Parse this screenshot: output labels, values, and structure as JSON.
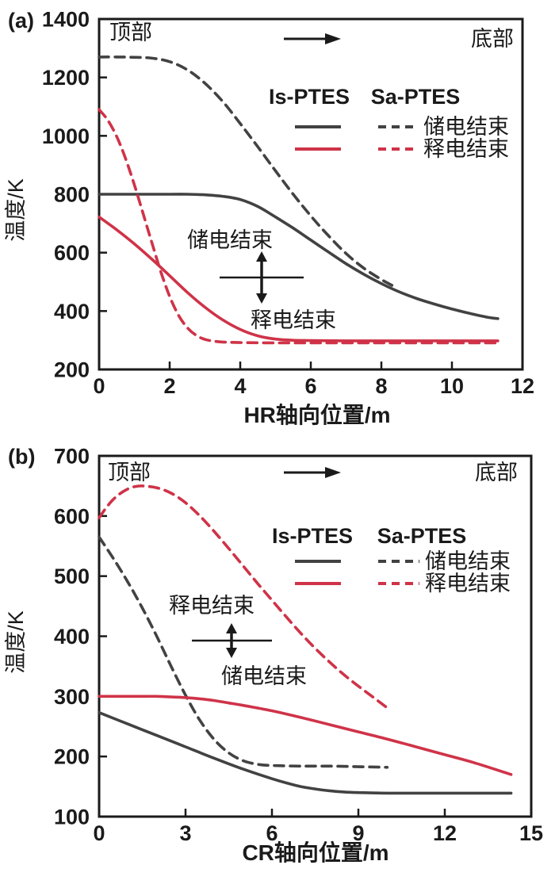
{
  "figure": {
    "background": "#ffffff"
  },
  "colors": {
    "dark": "#424242",
    "red": "#cf3348",
    "axis": "#1a1a1a",
    "text": "#1a1a1a"
  },
  "legend": {
    "col1": "Is-PTES",
    "col2": "Sa-PTES",
    "charge": "储电结束",
    "discharge": "释电结束"
  },
  "chart_data": [
    {
      "type": "line",
      "panel": "(a)",
      "xlabel": "HR轴向位置/m",
      "ylabel": "温度/K",
      "xlim": [
        0,
        12
      ],
      "ylim": [
        200,
        1400
      ],
      "xticks": [
        0,
        2,
        4,
        6,
        8,
        10,
        12
      ],
      "yticks": [
        200,
        400,
        600,
        800,
        1000,
        1200,
        1400
      ],
      "grid": false,
      "legend_position": "upper-right-inside",
      "top_label": "顶部",
      "bottom_label": "底部",
      "annotation_above": "储电结束",
      "annotation_below": "释电结束",
      "series": [
        {
          "name": "Is-PTES 储电结束",
          "color": "dark",
          "dash": false,
          "points": [
            [
              0,
              800
            ],
            [
              1,
              800
            ],
            [
              2,
              800
            ],
            [
              2.5,
              800
            ],
            [
              3,
              798
            ],
            [
              3.5,
              793
            ],
            [
              4,
              782
            ],
            [
              4.5,
              758
            ],
            [
              5,
              722
            ],
            [
              5.5,
              684
            ],
            [
              6,
              643
            ],
            [
              6.5,
              602
            ],
            [
              7,
              562
            ],
            [
              7.5,
              526
            ],
            [
              8,
              494
            ],
            [
              8.5,
              466
            ],
            [
              9,
              443
            ],
            [
              9.5,
              424
            ],
            [
              10,
              407
            ],
            [
              10.5,
              392
            ],
            [
              11,
              379
            ],
            [
              11.3,
              374
            ]
          ]
        },
        {
          "name": "Sa-PTES 储电结束",
          "color": "dark",
          "dash": true,
          "points": [
            [
              0,
              1270
            ],
            [
              0.5,
              1270
            ],
            [
              1,
              1269
            ],
            [
              1.5,
              1266
            ],
            [
              2,
              1254
            ],
            [
              2.5,
              1226
            ],
            [
              3,
              1180
            ],
            [
              3.5,
              1118
            ],
            [
              4,
              1042
            ],
            [
              4.5,
              962
            ],
            [
              5,
              880
            ],
            [
              5.5,
              800
            ],
            [
              6,
              726
            ],
            [
              6.5,
              658
            ],
            [
              7,
              597
            ],
            [
              7.5,
              547
            ],
            [
              8,
              508
            ],
            [
              8.3,
              488
            ]
          ]
        },
        {
          "name": "Is-PTES 释电结束",
          "color": "red",
          "dash": false,
          "points": [
            [
              0,
              722
            ],
            [
              0.5,
              678
            ],
            [
              1,
              630
            ],
            [
              1.5,
              577
            ],
            [
              2,
              521
            ],
            [
              2.5,
              464
            ],
            [
              3,
              413
            ],
            [
              3.5,
              370
            ],
            [
              4,
              337
            ],
            [
              4.5,
              315
            ],
            [
              5,
              304
            ],
            [
              5.5,
              300
            ],
            [
              6,
              299
            ],
            [
              7,
              298
            ],
            [
              8,
              298
            ],
            [
              9,
              298
            ],
            [
              10,
              298
            ],
            [
              11.3,
              298
            ]
          ]
        },
        {
          "name": "Sa-PTES 释电结束",
          "color": "red",
          "dash": true,
          "points": [
            [
              0,
              1090
            ],
            [
              0.25,
              1053
            ],
            [
              0.5,
              997
            ],
            [
              0.75,
              922
            ],
            [
              1,
              832
            ],
            [
              1.25,
              733
            ],
            [
              1.5,
              632
            ],
            [
              1.75,
              534
            ],
            [
              2,
              450
            ],
            [
              2.25,
              386
            ],
            [
              2.5,
              343
            ],
            [
              2.75,
              317
            ],
            [
              3,
              303
            ],
            [
              3.25,
              297
            ],
            [
              3.5,
              294
            ],
            [
              4,
              292
            ],
            [
              5,
              291
            ],
            [
              6,
              291
            ],
            [
              8,
              291
            ],
            [
              10,
              291
            ],
            [
              11.3,
              291
            ]
          ]
        }
      ]
    },
    {
      "type": "line",
      "panel": "(b)",
      "xlabel": "CR轴向位置/m",
      "ylabel": "温度/K",
      "xlim": [
        0,
        15
      ],
      "ylim": [
        100,
        700
      ],
      "xticks": [
        0,
        3,
        6,
        9,
        12,
        15
      ],
      "yticks": [
        100,
        200,
        300,
        400,
        500,
        600,
        700
      ],
      "grid": false,
      "legend_position": "upper-right-inside",
      "top_label": "顶部",
      "bottom_label": "底部",
      "annotation_above": "释电结束",
      "annotation_below": "储电结束",
      "series": [
        {
          "name": "Is-PTES 储电结束",
          "color": "dark",
          "dash": false,
          "points": [
            [
              0,
              273
            ],
            [
              1,
              254
            ],
            [
              2,
              235
            ],
            [
              3,
              216
            ],
            [
              4,
              197
            ],
            [
              5,
              179
            ],
            [
              6,
              163
            ],
            [
              6.5,
              156
            ],
            [
              7,
              150
            ],
            [
              7.5,
              146
            ],
            [
              8,
              143
            ],
            [
              8.5,
              141
            ],
            [
              9,
              140
            ],
            [
              10,
              139
            ],
            [
              11,
              139
            ],
            [
              12,
              139
            ],
            [
              13,
              139
            ],
            [
              14.3,
              139
            ]
          ]
        },
        {
          "name": "Sa-PTES 储电结束",
          "color": "dark",
          "dash": true,
          "points": [
            [
              0,
              565
            ],
            [
              0.5,
              529
            ],
            [
              1,
              490
            ],
            [
              1.5,
              447
            ],
            [
              2,
              400
            ],
            [
              2.5,
              350
            ],
            [
              3,
              302
            ],
            [
              3.5,
              260
            ],
            [
              4,
              228
            ],
            [
              4.5,
              206
            ],
            [
              5,
              193
            ],
            [
              5.5,
              187
            ],
            [
              6,
              185
            ],
            [
              7,
              184
            ],
            [
              8,
              184
            ],
            [
              9,
              183
            ],
            [
              10,
              182
            ]
          ]
        },
        {
          "name": "Is-PTES 释电结束",
          "color": "red",
          "dash": false,
          "points": [
            [
              0,
              300
            ],
            [
              0.5,
              300
            ],
            [
              1,
              300
            ],
            [
              1.5,
              300
            ],
            [
              2,
              300
            ],
            [
              2.5,
              299
            ],
            [
              3,
              298
            ],
            [
              3.5,
              296
            ],
            [
              4,
              293
            ],
            [
              4.5,
              289
            ],
            [
              5,
              285
            ],
            [
              6,
              276
            ],
            [
              7,
              265
            ],
            [
              8,
              253
            ],
            [
              9,
              241
            ],
            [
              10,
              229
            ],
            [
              11,
              216
            ],
            [
              12,
              203
            ],
            [
              13,
              190
            ],
            [
              14.3,
              170
            ]
          ]
        },
        {
          "name": "Sa-PTES 释电结束",
          "color": "red",
          "dash": true,
          "points": [
            [
              0,
              597
            ],
            [
              0.25,
              614
            ],
            [
              0.5,
              628
            ],
            [
              0.75,
              638
            ],
            [
              1,
              645
            ],
            [
              1.25,
              649
            ],
            [
              1.5,
              650
            ],
            [
              2,
              647
            ],
            [
              2.5,
              638
            ],
            [
              3,
              622
            ],
            [
              3.5,
              600
            ],
            [
              4,
              574
            ],
            [
              4.5,
              546
            ],
            [
              5,
              517
            ],
            [
              5.5,
              488
            ],
            [
              6,
              460
            ],
            [
              6.5,
              432
            ],
            [
              7,
              405
            ],
            [
              7.5,
              380
            ],
            [
              8,
              357
            ],
            [
              8.5,
              336
            ],
            [
              9,
              317
            ],
            [
              9.5,
              299
            ],
            [
              10,
              281
            ]
          ]
        }
      ]
    }
  ]
}
